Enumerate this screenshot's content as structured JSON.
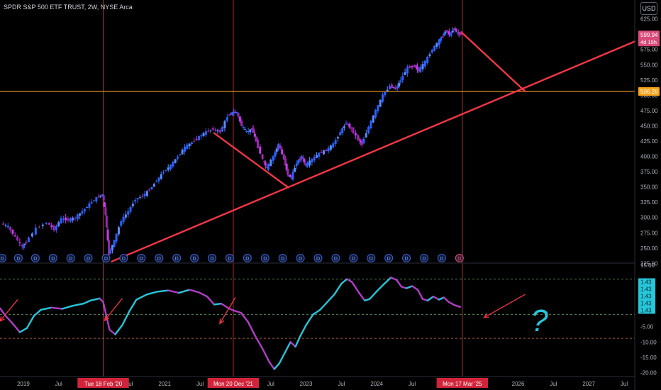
{
  "header": {
    "symbol_title": "SPDR S&P 500 ETF TRUST, 2W, NYSE Arca",
    "currency": "USD"
  },
  "colors": {
    "background": "#000000",
    "up_candle": "#2962ff",
    "down_candle": "#9c27b0",
    "up_candle_alt": "#5b8cff",
    "down_candle_alt": "#c83cf0",
    "indicator_up": "#26c6da",
    "indicator_down": "#b23cc8",
    "trendline": "#f23645",
    "support_line": "#f7a21b",
    "vertical_marker": "#b0303a",
    "dashed_level": "#5a8a5a",
    "dashed_level_low": "#a85a3a",
    "price_tag_current": "#d94a7a",
    "price_tag_level": "#f7a21b",
    "indicator_tag": "#26c6da",
    "question_mark": "#26c6da"
  },
  "chart_data": {
    "type": "candlestick",
    "price_axis": {
      "ticks": [
        "625.00",
        "600.00",
        "575.00",
        "550.00",
        "525.00",
        "500.00",
        "475.00",
        "450.00",
        "425.00",
        "400.00",
        "375.00",
        "350.00",
        "325.00",
        "300.00",
        "275.00",
        "250.00",
        "225.00"
      ],
      "range": [
        215,
        635
      ]
    },
    "indicator_axis": {
      "ticks": [
        "15.00",
        "10.00",
        "5.00",
        "0.00",
        "-5.00",
        "-10.00",
        "-15.00",
        "-20.00"
      ],
      "range": [
        -21,
        15
      ]
    },
    "x_axis": {
      "labels": [
        "2019",
        "Jul",
        "Jul",
        "2021",
        "Jul",
        "Jul",
        "2023",
        "Jul",
        "2024",
        "Jul",
        "Jul",
        "2026",
        "Jul",
        "2027",
        "Jul"
      ],
      "highlight_labels": [
        "Tue 18 Feb '20",
        "Mon 20 Dec '21",
        "Mon 17 Mar '25"
      ]
    },
    "time_range": [
      2018.67,
      2027.65
    ],
    "price_series": [
      [
        2018.7,
        290
      ],
      [
        2018.8,
        285
      ],
      [
        2018.9,
        268
      ],
      [
        2019.0,
        252
      ],
      [
        2019.05,
        260
      ],
      [
        2019.2,
        282
      ],
      [
        2019.35,
        292
      ],
      [
        2019.45,
        280
      ],
      [
        2019.55,
        298
      ],
      [
        2019.65,
        296
      ],
      [
        2019.75,
        300
      ],
      [
        2019.85,
        310
      ],
      [
        2019.95,
        322
      ],
      [
        2020.05,
        332
      ],
      [
        2020.13,
        338
      ],
      [
        2020.17,
        305
      ],
      [
        2020.22,
        240
      ],
      [
        2020.3,
        262
      ],
      [
        2020.4,
        295
      ],
      [
        2020.5,
        310
      ],
      [
        2020.6,
        330
      ],
      [
        2020.7,
        335
      ],
      [
        2020.8,
        345
      ],
      [
        2020.9,
        360
      ],
      [
        2021.0,
        375
      ],
      [
        2021.1,
        385
      ],
      [
        2021.2,
        400
      ],
      [
        2021.3,
        415
      ],
      [
        2021.4,
        423
      ],
      [
        2021.5,
        432
      ],
      [
        2021.6,
        440
      ],
      [
        2021.7,
        445
      ],
      [
        2021.8,
        440
      ],
      [
        2021.9,
        465
      ],
      [
        2021.97,
        472
      ],
      [
        2022.03,
        472
      ],
      [
        2022.1,
        450
      ],
      [
        2022.17,
        440
      ],
      [
        2022.25,
        445
      ],
      [
        2022.3,
        425
      ],
      [
        2022.4,
        395
      ],
      [
        2022.45,
        380
      ],
      [
        2022.55,
        400
      ],
      [
        2022.62,
        420
      ],
      [
        2022.7,
        395
      ],
      [
        2022.75,
        370
      ],
      [
        2022.8,
        365
      ],
      [
        2022.88,
        390
      ],
      [
        2022.95,
        400
      ],
      [
        2023.0,
        385
      ],
      [
        2023.1,
        395
      ],
      [
        2023.2,
        405
      ],
      [
        2023.3,
        410
      ],
      [
        2023.4,
        420
      ],
      [
        2023.5,
        440
      ],
      [
        2023.58,
        455
      ],
      [
        2023.65,
        445
      ],
      [
        2023.75,
        428
      ],
      [
        2023.8,
        420
      ],
      [
        2023.9,
        448
      ],
      [
        2024.0,
        475
      ],
      [
        2024.1,
        500
      ],
      [
        2024.2,
        515
      ],
      [
        2024.28,
        510
      ],
      [
        2024.35,
        525
      ],
      [
        2024.45,
        545
      ],
      [
        2024.55,
        548
      ],
      [
        2024.6,
        540
      ],
      [
        2024.7,
        555
      ],
      [
        2024.8,
        575
      ],
      [
        2024.9,
        590
      ],
      [
        2024.95,
        600
      ],
      [
        2025.0,
        605
      ],
      [
        2025.05,
        598
      ],
      [
        2025.1,
        610
      ],
      [
        2025.15,
        602
      ],
      [
        2025.2,
        599.94
      ]
    ],
    "indicator_series": [
      [
        2018.67,
        1.0
      ],
      [
        2018.75,
        -1.5
      ],
      [
        2018.85,
        -4.0
      ],
      [
        2018.95,
        -6.8
      ],
      [
        2019.05,
        -5.5
      ],
      [
        2019.15,
        -1.5
      ],
      [
        2019.25,
        0.5
      ],
      [
        2019.4,
        1.2
      ],
      [
        2019.55,
        0.8
      ],
      [
        2019.7,
        1.8
      ],
      [
        2019.85,
        2.5
      ],
      [
        2019.95,
        3.5
      ],
      [
        2020.08,
        4.2
      ],
      [
        2020.13,
        3.0
      ],
      [
        2020.17,
        -1.0
      ],
      [
        2020.22,
        -6.0
      ],
      [
        2020.3,
        -7.5
      ],
      [
        2020.4,
        -4.5
      ],
      [
        2020.5,
        0.0
      ],
      [
        2020.6,
        3.8
      ],
      [
        2020.75,
        5.5
      ],
      [
        2020.9,
        6.4
      ],
      [
        2021.05,
        6.8
      ],
      [
        2021.2,
        6.0
      ],
      [
        2021.35,
        7.0
      ],
      [
        2021.48,
        6.2
      ],
      [
        2021.6,
        4.8
      ],
      [
        2021.7,
        2.2
      ],
      [
        2021.8,
        2.5
      ],
      [
        2021.9,
        1.0
      ],
      [
        2021.97,
        0.3
      ],
      [
        2022.08,
        -0.5
      ],
      [
        2022.18,
        -3.5
      ],
      [
        2022.28,
        -8.0
      ],
      [
        2022.38,
        -12.0
      ],
      [
        2022.48,
        -16.5
      ],
      [
        2022.55,
        -18.8
      ],
      [
        2022.62,
        -17.0
      ],
      [
        2022.7,
        -13.5
      ],
      [
        2022.78,
        -10.0
      ],
      [
        2022.85,
        -11.5
      ],
      [
        2022.92,
        -8.0
      ],
      [
        2023.0,
        -4.5
      ],
      [
        2023.1,
        -1.0
      ],
      [
        2023.2,
        0.5
      ],
      [
        2023.3,
        3.0
      ],
      [
        2023.4,
        5.5
      ],
      [
        2023.5,
        9.0
      ],
      [
        2023.58,
        10.5
      ],
      [
        2023.65,
        9.5
      ],
      [
        2023.75,
        6.0
      ],
      [
        2023.83,
        3.5
      ],
      [
        2023.9,
        4.0
      ],
      [
        2024.0,
        6.5
      ],
      [
        2024.1,
        8.8
      ],
      [
        2024.2,
        11.0
      ],
      [
        2024.28,
        10.2
      ],
      [
        2024.35,
        8.0
      ],
      [
        2024.42,
        7.5
      ],
      [
        2024.5,
        8.2
      ],
      [
        2024.58,
        7.0
      ],
      [
        2024.65,
        4.0
      ],
      [
        2024.72,
        3.5
      ],
      [
        2024.8,
        4.8
      ],
      [
        2024.88,
        3.8
      ],
      [
        2024.95,
        4.5
      ],
      [
        2025.02,
        3.0
      ],
      [
        2025.1,
        2.0
      ],
      [
        2025.18,
        1.43
      ]
    ],
    "dividend_markers": [
      2018.7,
      2018.93,
      2019.17,
      2019.42,
      2019.67,
      2019.92,
      2020.17,
      2020.42,
      2020.67,
      2020.92,
      2021.17,
      2021.42,
      2021.67,
      2021.92,
      2022.17,
      2022.42,
      2022.67,
      2022.92,
      2023.17,
      2023.42,
      2023.67,
      2023.92,
      2024.17,
      2024.42,
      2024.67,
      2024.92,
      2025.17
    ],
    "annotations": {
      "current_price": "599.94",
      "countdown": "4d 15h",
      "level_price": "506.26",
      "support_level": 506.26,
      "indicator_value": "1.43",
      "indicator_stack_count": 5,
      "question_mark": "?",
      "vertical_markers": [
        2020.13,
        2021.97,
        2025.21
      ],
      "indicator_levels": {
        "upper": 10.5,
        "middle": -1.0,
        "lower": -8.8
      },
      "trendlines": [
        {
          "from": [
            2020.25,
            228
          ],
          "to": [
            2027.65,
            588
          ]
        },
        {
          "from": [
            2021.7,
            438
          ],
          "to": [
            2022.75,
            349
          ]
        },
        {
          "from": [
            2025.2,
            603
          ],
          "to": [
            2026.1,
            506.26
          ]
        }
      ],
      "arrows": [
        {
          "from": [
            2018.92,
            3.8
          ],
          "to": [
            2018.67,
            -3.2
          ]
        },
        {
          "from": [
            2020.4,
            4.2
          ],
          "to": [
            2020.15,
            -3.0
          ]
        },
        {
          "from": [
            2022.0,
            4.5
          ],
          "to": [
            2021.78,
            -4.0
          ]
        },
        {
          "from": [
            2026.1,
            5.5
          ],
          "to": [
            2025.52,
            -2.0
          ]
        }
      ]
    }
  }
}
